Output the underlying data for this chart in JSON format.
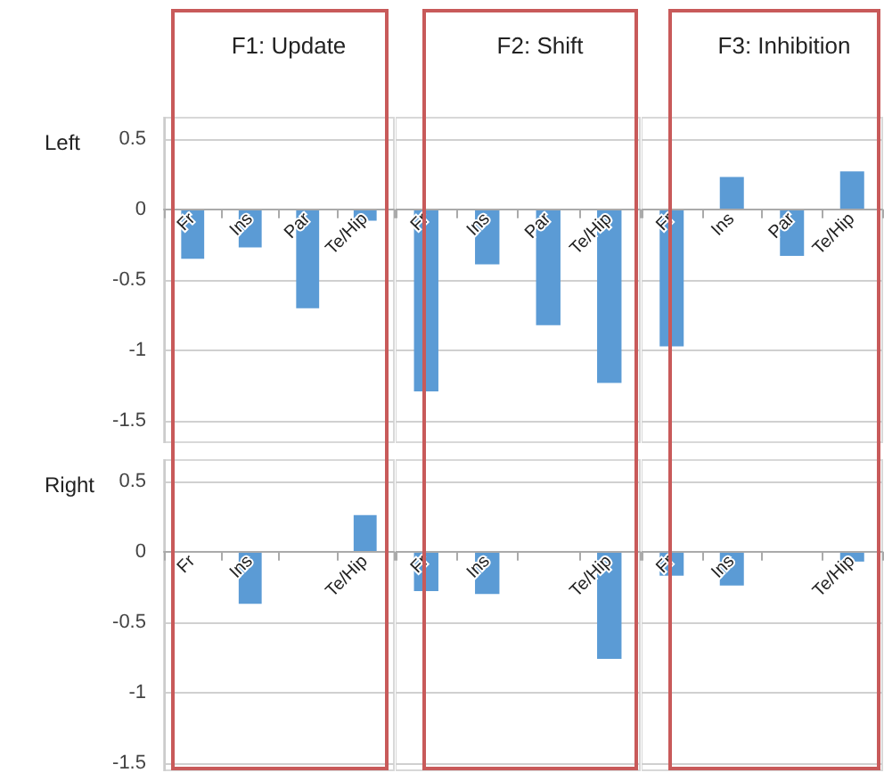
{
  "chart_data": [
    {
      "type": "bar",
      "title": "F1: Update",
      "ylabel": "Left",
      "categories": [
        "Fr",
        "Ins",
        "Par",
        "Te/Hip"
      ],
      "color": "#5b9bd5",
      "values": [
        -0.35,
        -0.27,
        -0.7,
        -0.08
      ],
      "ylim": [
        -1.65,
        0.65
      ],
      "yticks": [
        0.5,
        0,
        -0.5,
        -1,
        -1.5
      ],
      "grid": "y"
    },
    {
      "type": "bar",
      "title": "F2: Shift",
      "categories": [
        "Fr",
        "Ins",
        "Par",
        "Te/Hip"
      ],
      "color": "#5b9bd5",
      "values": [
        -1.29,
        -0.39,
        -0.82,
        -1.23
      ],
      "ylim": [
        -1.65,
        0.65
      ],
      "yticks": [
        0.5,
        0,
        -0.5,
        -1,
        -1.5
      ],
      "grid": "y",
      "tick_labels": "x"
    },
    {
      "type": "bar",
      "title": "F3: Inhibition",
      "categories": [
        "Fr",
        "Ins",
        "Par",
        "Te/Hip"
      ],
      "color": "#5b9bd5",
      "values": [
        -0.97,
        0.23,
        -0.33,
        0.27
      ],
      "ylim": [
        -1.65,
        0.65
      ],
      "yticks": [
        0.5,
        0,
        -0.5,
        -1,
        -1.5
      ],
      "grid": "y",
      "tick_labels": "x"
    },
    {
      "type": "bar",
      "ylabel": "Right",
      "categories": [
        "Fr",
        "Ins",
        null,
        "Te/Hip"
      ],
      "color": "#5b9bd5",
      "values": [
        null,
        -0.37,
        null,
        0.26
      ],
      "ylim": [
        -1.55,
        0.65
      ],
      "yticks": [
        0.5,
        0,
        -0.5,
        -1,
        -1.5
      ],
      "grid": "y"
    },
    {
      "type": "bar",
      "categories": [
        "Fr",
        "Ins",
        null,
        "Te/Hip"
      ],
      "color": "#5b9bd5",
      "values": [
        -0.28,
        -0.3,
        null,
        -0.76
      ],
      "ylim": [
        -1.55,
        0.65
      ],
      "yticks": [
        0.5,
        0,
        -0.5,
        -1,
        -1.5
      ],
      "grid": "y",
      "tick_labels": "x"
    },
    {
      "type": "bar",
      "categories": [
        "Fr",
        "Ins",
        null,
        "Te/Hip"
      ],
      "color": "#5b9bd5",
      "values": [
        -0.17,
        -0.24,
        null,
        -0.07
      ],
      "ylim": [
        -1.55,
        0.65
      ],
      "yticks": [
        0.5,
        0,
        -0.5,
        -1,
        -1.5
      ],
      "grid": "y",
      "tick_labels": "x"
    }
  ]
}
